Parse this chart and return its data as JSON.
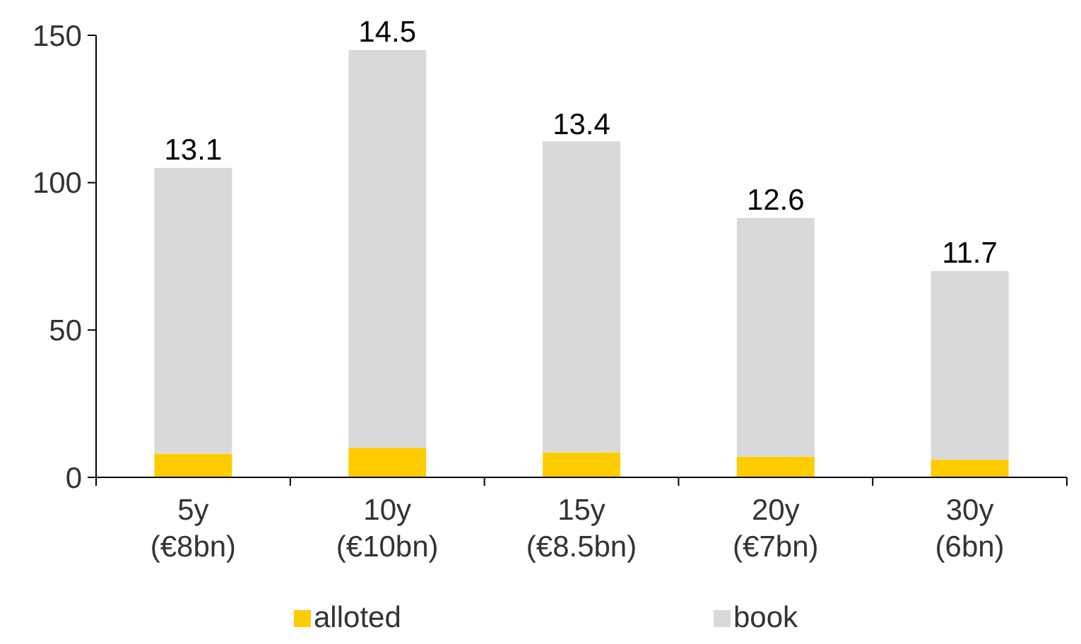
{
  "chart_data": {
    "type": "bar",
    "stacked": true,
    "categories": [
      "5y\n(€8bn)",
      "10y\n(€10bn)",
      "15y\n(€8.5bn)",
      "20y\n(€7bn)",
      "30y\n(6bn)"
    ],
    "series": [
      {
        "name": "alloted",
        "color": "#ffcc00",
        "values": [
          8,
          10,
          8.5,
          7,
          6
        ]
      },
      {
        "name": "book",
        "color": "#d9d9d9",
        "values": [
          97,
          135,
          105.5,
          81,
          64
        ]
      }
    ],
    "ylim": [
      0,
      150
    ],
    "yticks": [
      0,
      50,
      100,
      150
    ],
    "grid": false,
    "legend": "bottom",
    "annotations": [
      {
        "text": "13.1",
        "x": "5y\n(€8bn)",
        "y": 105
      },
      {
        "text": "14.5",
        "x": "10y\n(€10bn)",
        "y": 145
      },
      {
        "text": "13.4",
        "x": "15y\n(€8.5bn)",
        "y": 113.5
      },
      {
        "text": "12.6",
        "x": "20y\n(€7bn)",
        "y": 88
      },
      {
        "text": "11.7",
        "x": "30y\n(6bn)",
        "y": 70
      }
    ]
  }
}
